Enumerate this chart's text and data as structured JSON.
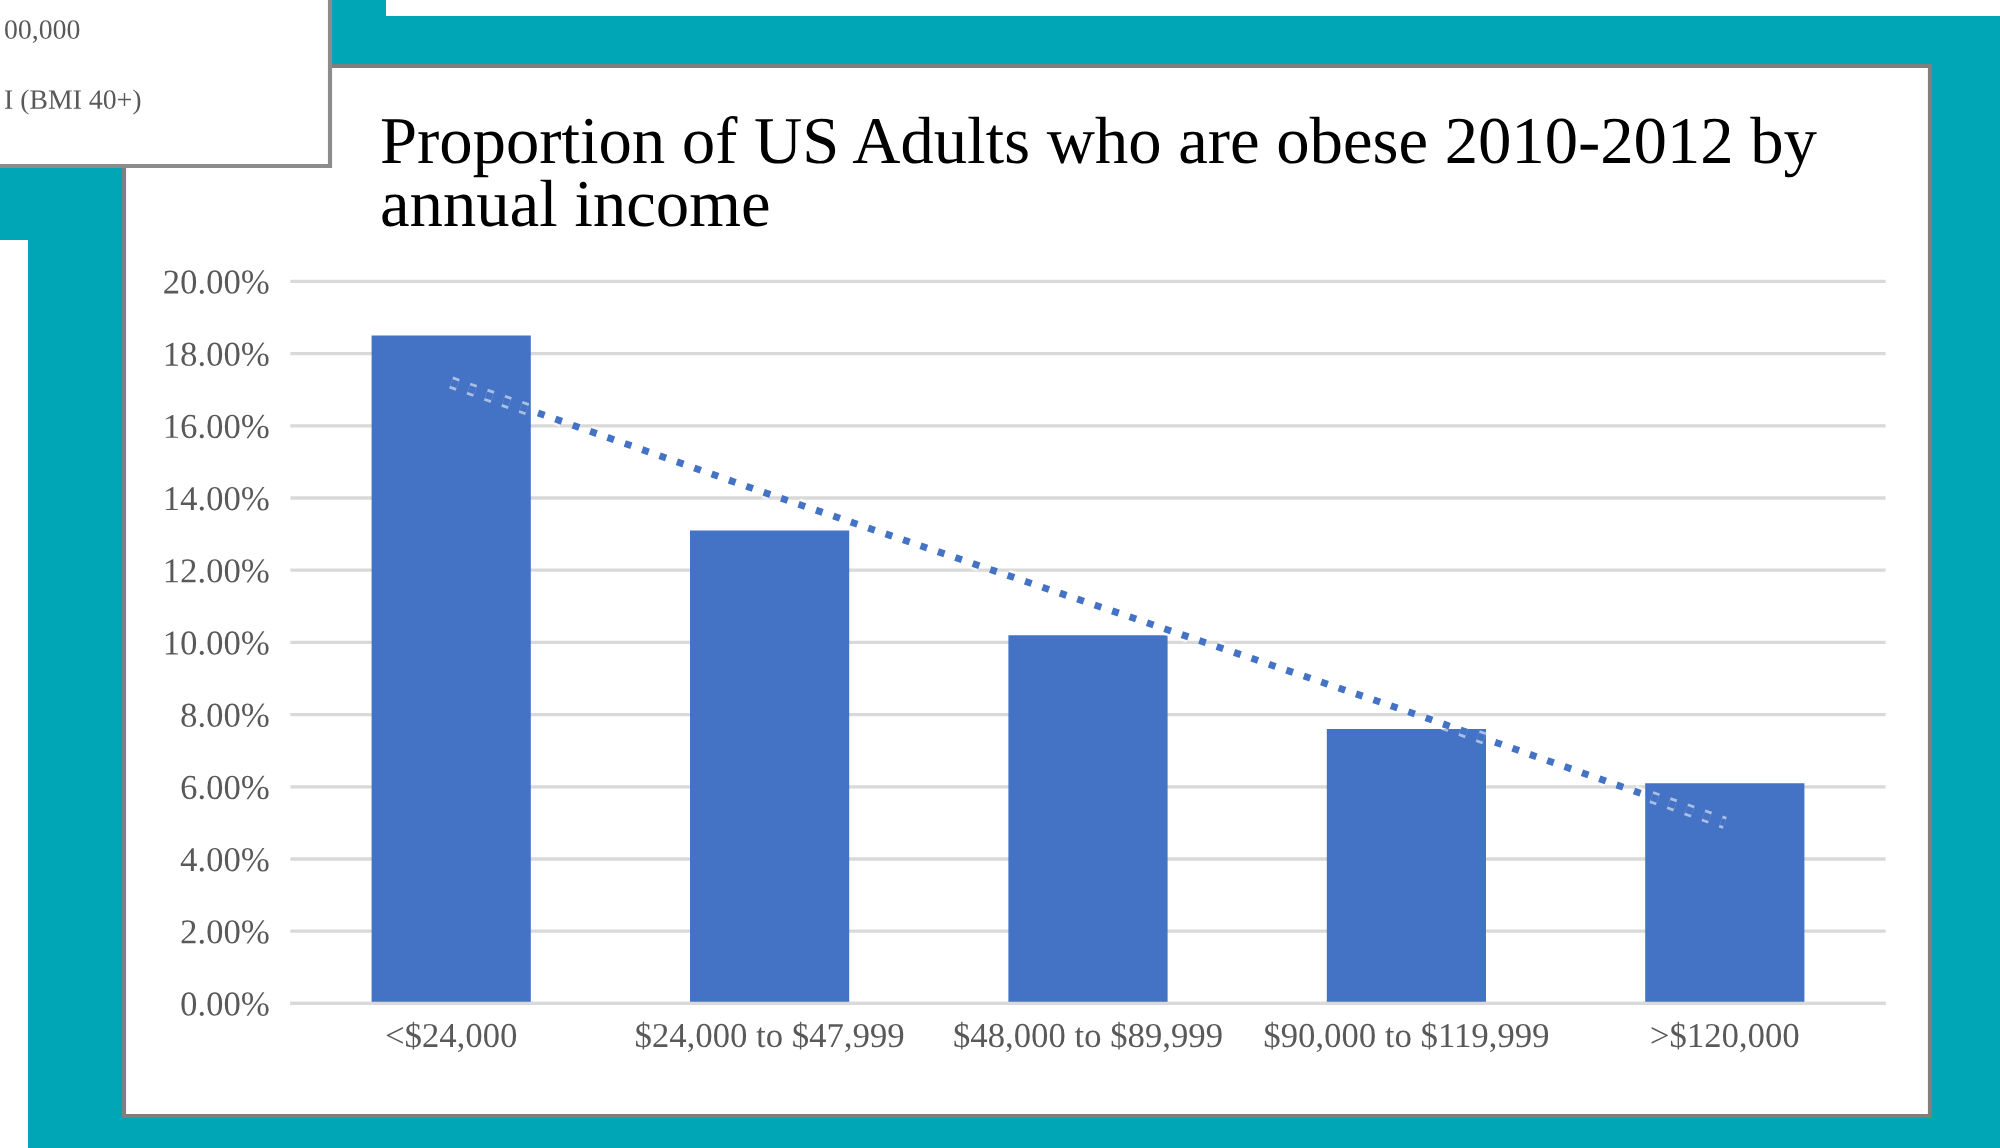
{
  "chart_data": {
    "type": "bar",
    "title": "Proportion of US Adults who are obese 2010-2012 by annual income",
    "categories": [
      "<$24,000",
      "$24,000 to $47,999",
      "$48,000 to $89,999",
      "$90,000 to $119,999",
      ">$120,000"
    ],
    "series": [
      {
        "color": "#4472c4",
        "values": [
          18.5,
          13.1,
          10.2,
          7.6,
          6.1
        ]
      },
      {
        "type": "line",
        "color": "#4472c4",
        "line_style": "dotted",
        "values": [
          17.2,
          14.1,
          11.1,
          8.1,
          5.0
        ]
      }
    ],
    "ylim": [
      0,
      20
    ],
    "yticks": [
      {
        "value": 0,
        "label": "0.00%"
      },
      {
        "value": 2,
        "label": "2.00%"
      },
      {
        "value": 4,
        "label": "4.00%"
      },
      {
        "value": 6,
        "label": "6.00%"
      },
      {
        "value": 8,
        "label": "8.00%"
      },
      {
        "value": 10,
        "label": "10.00%"
      },
      {
        "value": 12,
        "label": "12.00%"
      },
      {
        "value": 14,
        "label": "14.00%"
      },
      {
        "value": 16,
        "label": "16.00%"
      },
      {
        "value": 18,
        "label": "18.00%"
      },
      {
        "value": 20,
        "label": "20.00%"
      }
    ],
    "grid": "y",
    "annotations": [
      "00,000",
      "I (BMI 40+)"
    ]
  }
}
